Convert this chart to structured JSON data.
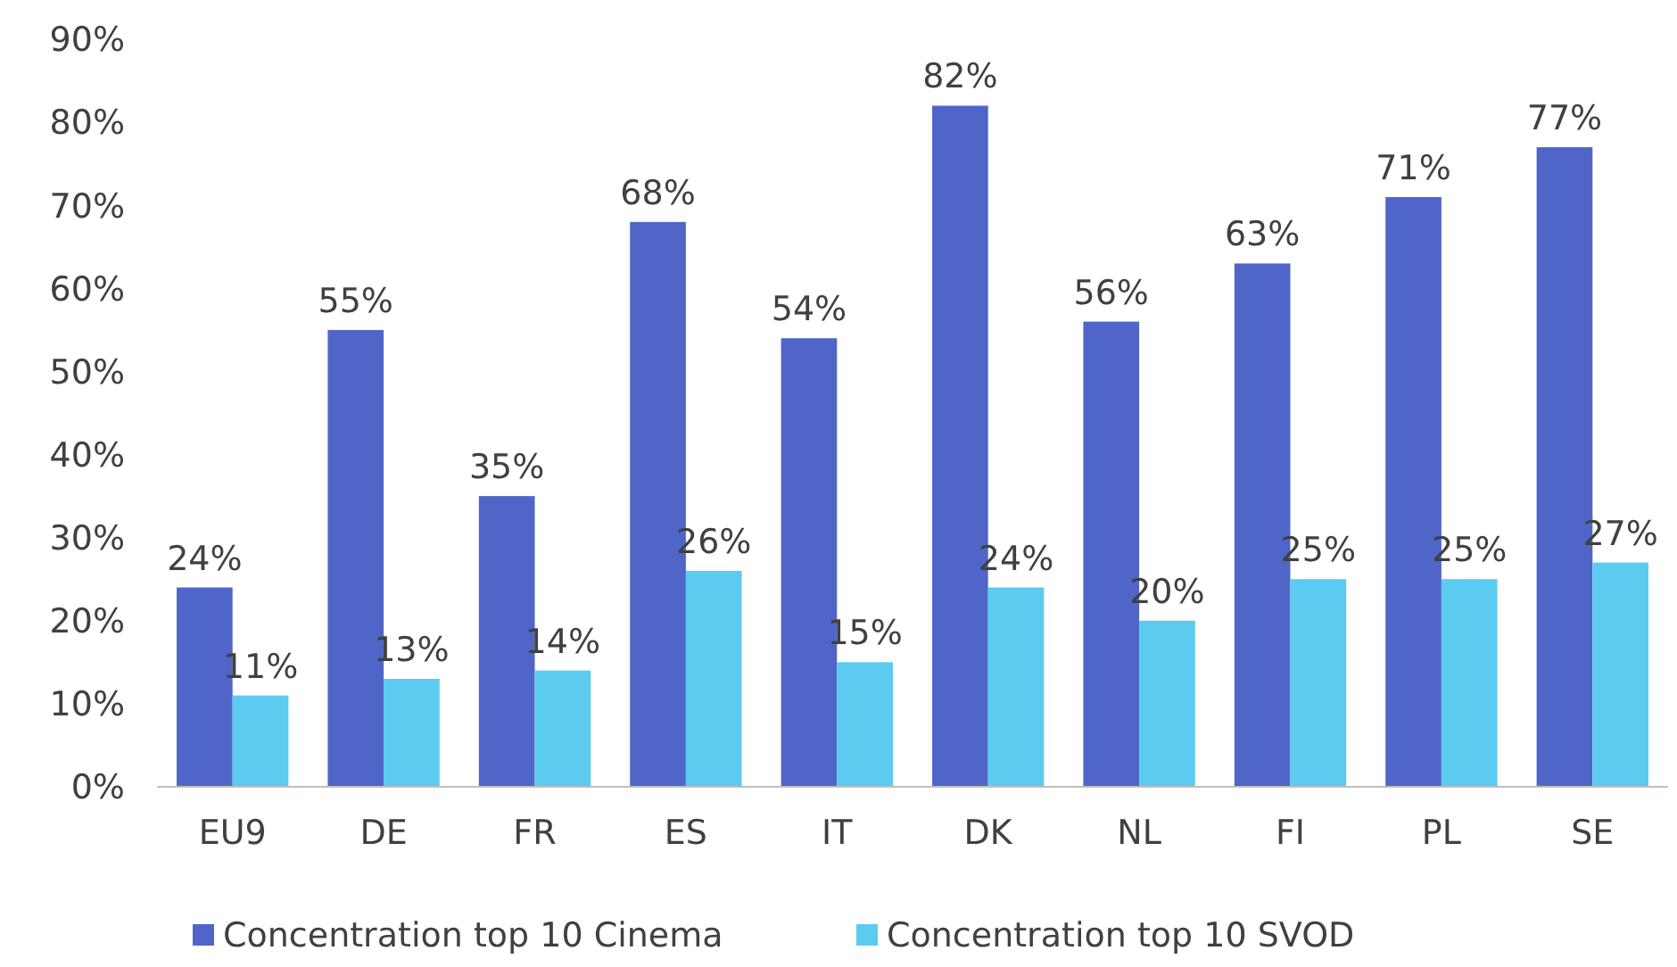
{
  "chart_data": {
    "type": "bar",
    "categories": [
      "EU9",
      "DE",
      "FR",
      "ES",
      "IT",
      "DK",
      "NL",
      "FI",
      "PL",
      "SE"
    ],
    "series": [
      {
        "name": "Concentration top 10 Cinema",
        "color": "#4f66c8",
        "values": [
          24,
          55,
          35,
          68,
          54,
          82,
          56,
          63,
          71,
          77
        ],
        "value_labels": [
          "24%",
          "55%",
          "35%",
          "68%",
          "54%",
          "82%",
          "56%",
          "63%",
          "71%",
          "77%"
        ]
      },
      {
        "name": "Concentration top 10 SVOD",
        "color": "#5bcbf0",
        "values": [
          11,
          13,
          14,
          26,
          15,
          24,
          20,
          25,
          25,
          27
        ],
        "value_labels": [
          "11%",
          "13%",
          "14%",
          "26%",
          "15%",
          "24%",
          "20%",
          "25%",
          "25%",
          "27%"
        ]
      }
    ],
    "ylim": [
      0,
      90
    ],
    "yticks": [
      {
        "value": 0,
        "label": "0%"
      },
      {
        "value": 10,
        "label": "10%"
      },
      {
        "value": 20,
        "label": "20%"
      },
      {
        "value": 30,
        "label": "30%"
      },
      {
        "value": 40,
        "label": "40%"
      },
      {
        "value": 50,
        "label": "50%"
      },
      {
        "value": 60,
        "label": "60%"
      },
      {
        "value": 70,
        "label": "70%"
      },
      {
        "value": 80,
        "label": "80%"
      },
      {
        "value": 90,
        "label": "90%"
      }
    ],
    "grid": false,
    "legend": "bottom"
  }
}
